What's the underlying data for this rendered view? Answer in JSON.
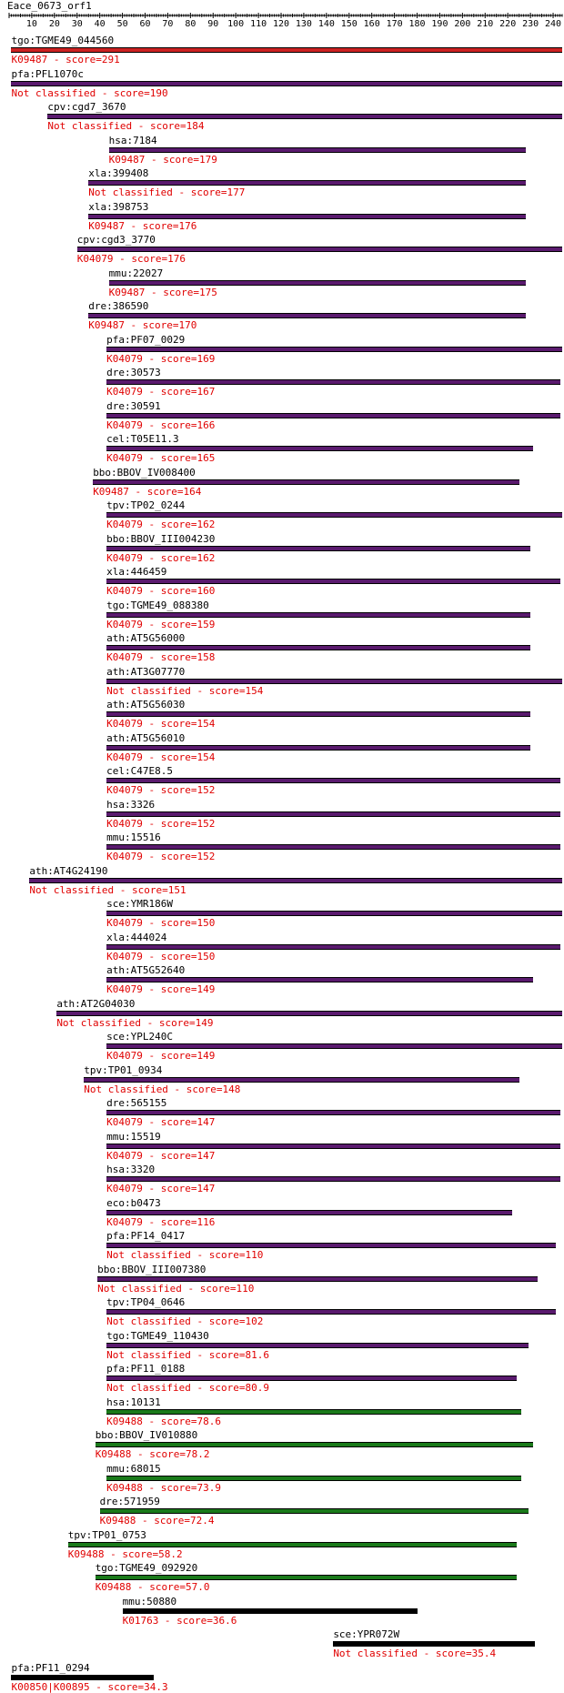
{
  "query": "Eace_0673_orf1",
  "axis": {
    "min": 0,
    "max": 244,
    "labels": [
      "10",
      "20",
      "30",
      "40",
      "50",
      "60",
      "70",
      "80",
      "90",
      "100",
      "110",
      "120",
      "130",
      "140",
      "150",
      "160",
      "170",
      "180",
      "190",
      "200",
      "210",
      "220",
      "230",
      "240"
    ]
  },
  "colors": {
    "red": "#cc2222",
    "purple": "#5a1a6e",
    "green": "#1a7a1a",
    "black": "#000000",
    "score_text": "#e00000"
  },
  "hits": [
    {
      "name": "tgo:TGME49_044560",
      "score_label": "K09487 - score=291",
      "start": 1,
      "end": 244,
      "color": "red"
    },
    {
      "name": "pfa:PFL1070c",
      "score_label": "Not classified - score=190",
      "start": 1,
      "end": 244,
      "color": "purple"
    },
    {
      "name": "cpv:cgd7_3670",
      "score_label": "Not classified - score=184",
      "start": 17,
      "end": 244,
      "color": "purple"
    },
    {
      "name": "hsa:7184",
      "score_label": "K09487 - score=179",
      "start": 44,
      "end": 228,
      "color": "purple"
    },
    {
      "name": "xla:399408",
      "score_label": "Not classified - score=177",
      "start": 35,
      "end": 228,
      "color": "purple"
    },
    {
      "name": "xla:398753",
      "score_label": "K09487 - score=176",
      "start": 35,
      "end": 228,
      "color": "purple"
    },
    {
      "name": "cpv:cgd3_3770",
      "score_label": "K04079 - score=176",
      "start": 30,
      "end": 244,
      "color": "purple"
    },
    {
      "name": "mmu:22027",
      "score_label": "K09487 - score=175",
      "start": 44,
      "end": 228,
      "color": "purple"
    },
    {
      "name": "dre:386590",
      "score_label": "K09487 - score=170",
      "start": 35,
      "end": 228,
      "color": "purple"
    },
    {
      "name": "pfa:PF07_0029",
      "score_label": "K04079 - score=169",
      "start": 43,
      "end": 244,
      "color": "purple"
    },
    {
      "name": "dre:30573",
      "score_label": "K04079 - score=167",
      "start": 43,
      "end": 243,
      "color": "purple"
    },
    {
      "name": "dre:30591",
      "score_label": "K04079 - score=166",
      "start": 43,
      "end": 243,
      "color": "purple"
    },
    {
      "name": "cel:T05E11.3",
      "score_label": "K04079 - score=165",
      "start": 43,
      "end": 231,
      "color": "purple"
    },
    {
      "name": "bbo:BBOV_IV008400",
      "score_label": "K09487 - score=164",
      "start": 37,
      "end": 225,
      "color": "purple"
    },
    {
      "name": "tpv:TP02_0244",
      "score_label": "K04079 - score=162",
      "start": 43,
      "end": 244,
      "color": "purple"
    },
    {
      "name": "bbo:BBOV_III004230",
      "score_label": "K04079 - score=162",
      "start": 43,
      "end": 230,
      "color": "purple"
    },
    {
      "name": "xla:446459",
      "score_label": "K04079 - score=160",
      "start": 43,
      "end": 243,
      "color": "purple"
    },
    {
      "name": "tgo:TGME49_088380",
      "score_label": "K04079 - score=159",
      "start": 43,
      "end": 230,
      "color": "purple"
    },
    {
      "name": "ath:AT5G56000",
      "score_label": "K04079 - score=158",
      "start": 43,
      "end": 230,
      "color": "purple"
    },
    {
      "name": "ath:AT3G07770",
      "score_label": "Not classified - score=154",
      "start": 43,
      "end": 244,
      "color": "purple"
    },
    {
      "name": "ath:AT5G56030",
      "score_label": "K04079 - score=154",
      "start": 43,
      "end": 230,
      "color": "purple"
    },
    {
      "name": "ath:AT5G56010",
      "score_label": "K04079 - score=154",
      "start": 43,
      "end": 230,
      "color": "purple"
    },
    {
      "name": "cel:C47E8.5",
      "score_label": "K04079 - score=152",
      "start": 43,
      "end": 243,
      "color": "purple"
    },
    {
      "name": "hsa:3326",
      "score_label": "K04079 - score=152",
      "start": 43,
      "end": 243,
      "color": "purple"
    },
    {
      "name": "mmu:15516",
      "score_label": "K04079 - score=152",
      "start": 43,
      "end": 243,
      "color": "purple"
    },
    {
      "name": "ath:AT4G24190",
      "score_label": "Not classified - score=151",
      "start": 9,
      "end": 244,
      "color": "purple"
    },
    {
      "name": "sce:YMR186W",
      "score_label": "K04079 - score=150",
      "start": 43,
      "end": 244,
      "color": "purple"
    },
    {
      "name": "xla:444024",
      "score_label": "K04079 - score=150",
      "start": 43,
      "end": 243,
      "color": "purple"
    },
    {
      "name": "ath:AT5G52640",
      "score_label": "K04079 - score=149",
      "start": 43,
      "end": 231,
      "color": "purple"
    },
    {
      "name": "ath:AT2G04030",
      "score_label": "Not classified - score=149",
      "start": 21,
      "end": 244,
      "color": "purple"
    },
    {
      "name": "sce:YPL240C",
      "score_label": "K04079 - score=149",
      "start": 43,
      "end": 244,
      "color": "purple"
    },
    {
      "name": "tpv:TP01_0934",
      "score_label": "Not classified - score=148",
      "start": 33,
      "end": 225,
      "color": "purple"
    },
    {
      "name": "dre:565155",
      "score_label": "K04079 - score=147",
      "start": 43,
      "end": 243,
      "color": "purple"
    },
    {
      "name": "mmu:15519",
      "score_label": "K04079 - score=147",
      "start": 43,
      "end": 243,
      "color": "purple"
    },
    {
      "name": "hsa:3320",
      "score_label": "K04079 - score=147",
      "start": 43,
      "end": 243,
      "color": "purple"
    },
    {
      "name": "eco:b0473",
      "score_label": "K04079 - score=116",
      "start": 43,
      "end": 222,
      "color": "purple"
    },
    {
      "name": "pfa:PF14_0417",
      "score_label": "Not classified - score=110",
      "start": 43,
      "end": 241,
      "color": "purple"
    },
    {
      "name": "bbo:BBOV_III007380",
      "score_label": "Not classified - score=110",
      "start": 39,
      "end": 233,
      "color": "purple"
    },
    {
      "name": "tpv:TP04_0646",
      "score_label": "Not classified - score=102",
      "start": 43,
      "end": 241,
      "color": "purple"
    },
    {
      "name": "tgo:TGME49_110430",
      "score_label": "Not classified - score=81.6",
      "start": 43,
      "end": 229,
      "color": "purple"
    },
    {
      "name": "pfa:PF11_0188",
      "score_label": "Not classified - score=80.9",
      "start": 43,
      "end": 224,
      "color": "purple"
    },
    {
      "name": "hsa:10131",
      "score_label": "K09488 - score=78.6",
      "start": 43,
      "end": 226,
      "color": "green"
    },
    {
      "name": "bbo:BBOV_IV010880",
      "score_label": "K09488 - score=78.2",
      "start": 38,
      "end": 231,
      "color": "green"
    },
    {
      "name": "mmu:68015",
      "score_label": "K09488 - score=73.9",
      "start": 43,
      "end": 226,
      "color": "green"
    },
    {
      "name": "dre:571959",
      "score_label": "K09488 - score=72.4",
      "start": 40,
      "end": 229,
      "color": "green"
    },
    {
      "name": "tpv:TP01_0753",
      "score_label": "K09488 - score=58.2",
      "start": 26,
      "end": 224,
      "color": "green"
    },
    {
      "name": "tgo:TGME49_092920",
      "score_label": "K09488 - score=57.0",
      "start": 38,
      "end": 224,
      "color": "green"
    },
    {
      "name": "mmu:50880",
      "score_label": "K01763 - score=36.6",
      "start": 50,
      "end": 180,
      "color": "black"
    },
    {
      "name": "sce:YPR072W",
      "score_label": "Not classified - score=35.4",
      "start": 143,
      "end": 232,
      "color": "black"
    },
    {
      "name": "pfa:PF11_0294",
      "score_label": "K00850|K00895 - score=34.3",
      "start": 1,
      "end": 64,
      "color": "black"
    }
  ]
}
